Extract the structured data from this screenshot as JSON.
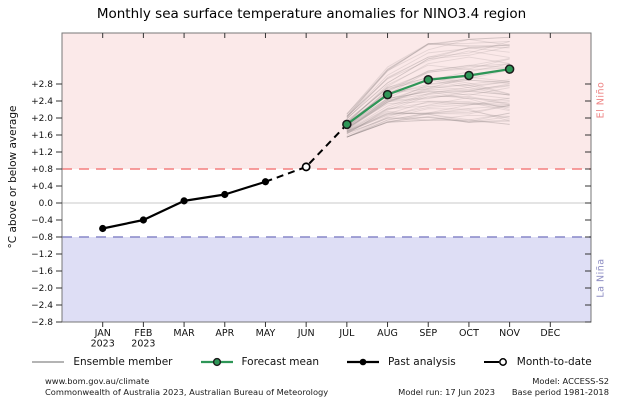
{
  "title": "Monthly sea surface temperature anomalies for NINO3.4 region",
  "side_labels": {
    "el_nino": "El Niño",
    "la_nina": "La Niña"
  },
  "legend": {
    "items": [
      {
        "label": "Ensemble member"
      },
      {
        "label": "Forecast mean"
      },
      {
        "label": "Past analysis"
      },
      {
        "label": "Month-to-date"
      }
    ]
  },
  "footer": {
    "url": "www.bom.gov.au/climate",
    "copyright": "Commonwealth of Australia 2023, Australian Bureau of Meteorology",
    "model_run": "Model run: 17 Jun 2023",
    "model": "Model: ACCESS-S2",
    "base_period": "Base period 1981-2018"
  },
  "chart_data": {
    "type": "line",
    "title": "Monthly sea surface temperature anomalies for NINO3.4 region",
    "ylabel": "°C above or below average",
    "xlabel": "",
    "categories": [
      "JAN",
      "FEB",
      "MAR",
      "APR",
      "MAY",
      "JUN",
      "JUL",
      "AUG",
      "SEP",
      "OCT",
      "NOV",
      "DEC"
    ],
    "category_sublabels": {
      "JAN": "2023",
      "FEB": "2023"
    },
    "ylim": [
      -2.8,
      4.0
    ],
    "ytick_values": [
      2.8,
      2.4,
      2.0,
      1.6,
      1.2,
      0.8,
      0.4,
      0.0,
      -0.4,
      -0.8,
      -1.2,
      -1.6,
      -2.0,
      -2.4,
      -2.8
    ],
    "ytick_labels": [
      "+2.8",
      "+2.4",
      "+2.0",
      "+1.6",
      "+1.2",
      "+0.8",
      "+0.4",
      "0.0",
      "−0.4",
      "−0.8",
      "−1.2",
      "−1.6",
      "−2.0",
      "−2.4",
      "−2.8"
    ],
    "thresholds": {
      "el_nino": 0.8,
      "la_nina": -0.8
    },
    "grid": "zero-line-only",
    "legend_position": "bottom",
    "series": [
      {
        "name": "Past analysis",
        "style": "black-line-filled-markers",
        "months": [
          "JAN",
          "FEB",
          "MAR",
          "APR",
          "MAY"
        ],
        "values": [
          -0.6,
          -0.4,
          0.05,
          0.2,
          0.5
        ]
      },
      {
        "name": "Month-to-date",
        "style": "open-marker-on-dashed-line",
        "months": [
          "JUN"
        ],
        "values": [
          0.85
        ]
      },
      {
        "name": "Forecast mean",
        "style": "green-line-ring-markers",
        "months": [
          "JUL",
          "AUG",
          "SEP",
          "OCT",
          "NOV"
        ],
        "values": [
          1.85,
          2.55,
          2.9,
          3.0,
          3.15
        ]
      },
      {
        "name": "Ensemble member",
        "style": "gray-fan",
        "months": [
          "JUL",
          "AUG",
          "SEP",
          "OCT",
          "NOV"
        ],
        "count": 60,
        "min": [
          1.55,
          1.9,
          1.95,
          1.9,
          1.85
        ],
        "max": [
          2.1,
          3.2,
          3.75,
          3.85,
          3.9
        ]
      }
    ],
    "colors": {
      "el_nino_band": "#fbe9e9",
      "la_nina_band": "#dedef5",
      "el_nino_line": "#f47f7f",
      "la_nina_line": "#8787c8",
      "forecast_green": "#2e9657",
      "past_black": "#000000",
      "ensemble_gray": "#8a8080",
      "zero_line": "#c9c9c9",
      "frame": "#777777"
    }
  }
}
